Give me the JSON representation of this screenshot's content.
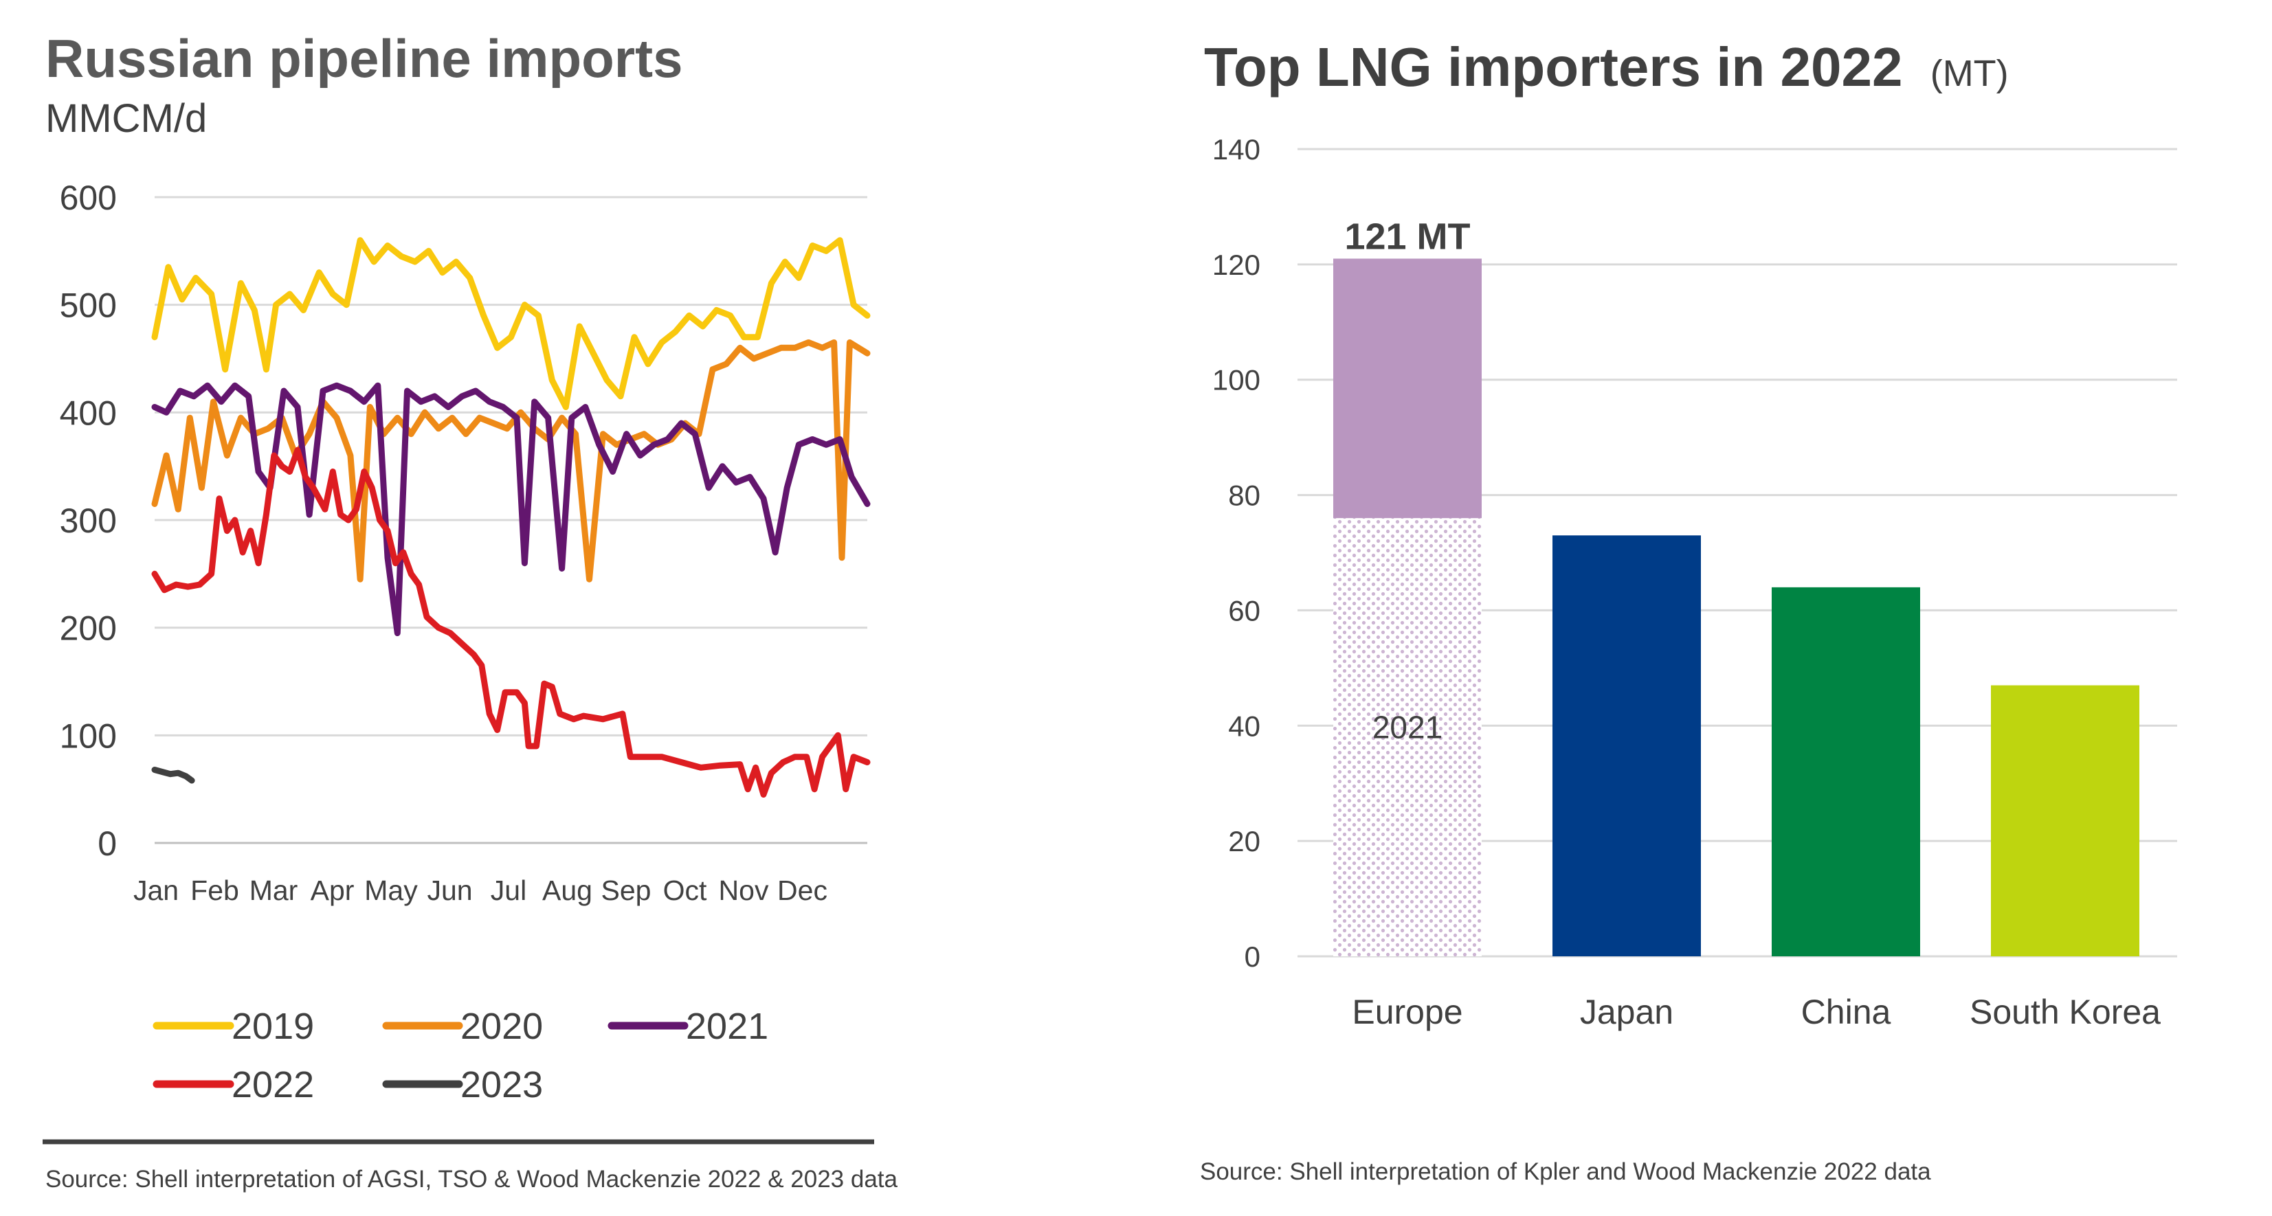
{
  "left_panel": {
    "title": "Russian pipeline imports",
    "unit": "MMCM/d",
    "source": "Source: Shell interpretation of AGSI, TSO & Wood Mackenzie 2022 & 2023 data"
  },
  "right_panel": {
    "title": "Top LNG importers in 2022",
    "unit": "(MT)",
    "source": "Source: Shell interpretation of Kpler and Wood Mackenzie 2022 data"
  },
  "colors": {
    "2019": "#f9c80e",
    "2020": "#ee8a17",
    "2021": "#63166e",
    "2022": "#dd1d21",
    "2023": "#404040",
    "europe_2022": "#b996c0",
    "europe_2021": "#e6d9e9",
    "japan": "#003c88",
    "china": "#008443",
    "south_korea": "#bed50f",
    "grid": "#d9d9d9",
    "text": "#404040",
    "divider": "#404040"
  },
  "chart_data": [
    {
      "type": "line",
      "title": "Russian pipeline imports",
      "ylabel": "MMCM/d",
      "xlabel": "",
      "x_tick_labels": [
        "Jan",
        "Feb",
        "Mar",
        "Apr",
        "May",
        "Jun",
        "Jul",
        "Aug",
        "Sep",
        "Oct",
        "Nov",
        "Dec"
      ],
      "x_unit": "day of year",
      "xlim": [
        1,
        365
      ],
      "ylim": [
        0,
        600
      ],
      "y_ticks": [
        "0",
        "100",
        "200",
        "300",
        "400",
        "500",
        "600"
      ],
      "grid": true,
      "legend": "bottom",
      "series": [
        {
          "name": "2019",
          "color": "#f9c80e",
          "points": [
            [
              1,
              470
            ],
            [
              8,
              535
            ],
            [
              15,
              505
            ],
            [
              22,
              525
            ],
            [
              30,
              510
            ],
            [
              37,
              440
            ],
            [
              45,
              520
            ],
            [
              52,
              495
            ],
            [
              58,
              440
            ],
            [
              63,
              500
            ],
            [
              70,
              510
            ],
            [
              77,
              495
            ],
            [
              85,
              530
            ],
            [
              92,
              510
            ],
            [
              99,
              500
            ],
            [
              106,
              560
            ],
            [
              113,
              540
            ],
            [
              120,
              555
            ],
            [
              127,
              545
            ],
            [
              134,
              540
            ],
            [
              141,
              550
            ],
            [
              148,
              530
            ],
            [
              155,
              540
            ],
            [
              162,
              525
            ],
            [
              169,
              490
            ],
            [
              176,
              460
            ],
            [
              183,
              470
            ],
            [
              190,
              500
            ],
            [
              197,
              490
            ],
            [
              204,
              430
            ],
            [
              211,
              405
            ],
            [
              218,
              480
            ],
            [
              225,
              455
            ],
            [
              232,
              430
            ],
            [
              239,
              415
            ],
            [
              246,
              470
            ],
            [
              253,
              445
            ],
            [
              260,
              465
            ],
            [
              267,
              475
            ],
            [
              274,
              490
            ],
            [
              281,
              480
            ],
            [
              288,
              495
            ],
            [
              295,
              490
            ],
            [
              302,
              470
            ],
            [
              309,
              470
            ],
            [
              316,
              520
            ],
            [
              323,
              540
            ],
            [
              330,
              525
            ],
            [
              337,
              555
            ],
            [
              344,
              550
            ],
            [
              351,
              560
            ],
            [
              358,
              500
            ],
            [
              365,
              490
            ]
          ]
        },
        {
          "name": "2020",
          "color": "#ee8a17",
          "points": [
            [
              1,
              315
            ],
            [
              7,
              360
            ],
            [
              13,
              310
            ],
            [
              19,
              395
            ],
            [
              25,
              330
            ],
            [
              31,
              410
            ],
            [
              38,
              360
            ],
            [
              45,
              395
            ],
            [
              52,
              380
            ],
            [
              59,
              385
            ],
            [
              66,
              395
            ],
            [
              73,
              360
            ],
            [
              80,
              380
            ],
            [
              87,
              410
            ],
            [
              94,
              395
            ],
            [
              101,
              360
            ],
            [
              106,
              245
            ],
            [
              111,
              405
            ],
            [
              118,
              380
            ],
            [
              125,
              395
            ],
            [
              132,
              380
            ],
            [
              139,
              400
            ],
            [
              146,
              385
            ],
            [
              153,
              395
            ],
            [
              160,
              380
            ],
            [
              167,
              395
            ],
            [
              174,
              390
            ],
            [
              181,
              385
            ],
            [
              188,
              400
            ],
            [
              195,
              385
            ],
            [
              202,
              375
            ],
            [
              209,
              395
            ],
            [
              216,
              380
            ],
            [
              223,
              245
            ],
            [
              230,
              380
            ],
            [
              237,
              370
            ],
            [
              244,
              375
            ],
            [
              251,
              380
            ],
            [
              258,
              370
            ],
            [
              265,
              375
            ],
            [
              272,
              390
            ],
            [
              279,
              380
            ],
            [
              286,
              440
            ],
            [
              293,
              445
            ],
            [
              300,
              460
            ],
            [
              307,
              450
            ],
            [
              314,
              455
            ],
            [
              321,
              460
            ],
            [
              328,
              460
            ],
            [
              335,
              465
            ],
            [
              342,
              460
            ],
            [
              348,
              465
            ],
            [
              352,
              265
            ],
            [
              356,
              465
            ],
            [
              365,
              455
            ]
          ]
        },
        {
          "name": "2021",
          "color": "#63166e",
          "points": [
            [
              1,
              405
            ],
            [
              7,
              400
            ],
            [
              14,
              420
            ],
            [
              21,
              415
            ],
            [
              28,
              425
            ],
            [
              35,
              410
            ],
            [
              42,
              425
            ],
            [
              49,
              415
            ],
            [
              54,
              345
            ],
            [
              60,
              330
            ],
            [
              67,
              420
            ],
            [
              74,
              405
            ],
            [
              80,
              305
            ],
            [
              87,
              420
            ],
            [
              94,
              425
            ],
            [
              101,
              420
            ],
            [
              108,
              410
            ],
            [
              115,
              425
            ],
            [
              120,
              265
            ],
            [
              125,
              195
            ],
            [
              130,
              420
            ],
            [
              137,
              410
            ],
            [
              144,
              415
            ],
            [
              151,
              405
            ],
            [
              158,
              415
            ],
            [
              165,
              420
            ],
            [
              172,
              410
            ],
            [
              179,
              405
            ],
            [
              186,
              395
            ],
            [
              190,
              260
            ],
            [
              195,
              410
            ],
            [
              202,
              395
            ],
            [
              209,
              255
            ],
            [
              214,
              395
            ],
            [
              221,
              405
            ],
            [
              228,
              370
            ],
            [
              235,
              345
            ],
            [
              242,
              380
            ],
            [
              249,
              360
            ],
            [
              256,
              370
            ],
            [
              263,
              375
            ],
            [
              270,
              390
            ],
            [
              277,
              380
            ],
            [
              284,
              330
            ],
            [
              291,
              350
            ],
            [
              298,
              335
            ],
            [
              305,
              340
            ],
            [
              312,
              320
            ],
            [
              318,
              270
            ],
            [
              324,
              330
            ],
            [
              330,
              370
            ],
            [
              337,
              375
            ],
            [
              344,
              370
            ],
            [
              351,
              375
            ],
            [
              357,
              340
            ],
            [
              365,
              315
            ]
          ]
        },
        {
          "name": "2022",
          "color": "#dd1d21",
          "points": [
            [
              1,
              250
            ],
            [
              6,
              235
            ],
            [
              12,
              240
            ],
            [
              18,
              238
            ],
            [
              24,
              240
            ],
            [
              30,
              250
            ],
            [
              34,
              320
            ],
            [
              38,
              290
            ],
            [
              42,
              300
            ],
            [
              46,
              270
            ],
            [
              50,
              290
            ],
            [
              54,
              260
            ],
            [
              58,
              305
            ],
            [
              62,
              360
            ],
            [
              66,
              350
            ],
            [
              70,
              345
            ],
            [
              74,
              365
            ],
            [
              78,
              340
            ],
            [
              82,
              330
            ],
            [
              88,
              310
            ],
            [
              92,
              345
            ],
            [
              96,
              305
            ],
            [
              100,
              300
            ],
            [
              104,
              310
            ],
            [
              108,
              345
            ],
            [
              112,
              330
            ],
            [
              116,
              300
            ],
            [
              120,
              290
            ],
            [
              124,
              260
            ],
            [
              128,
              270
            ],
            [
              132,
              250
            ],
            [
              136,
              240
            ],
            [
              140,
              210
            ],
            [
              146,
              200
            ],
            [
              152,
              195
            ],
            [
              158,
              185
            ],
            [
              164,
              175
            ],
            [
              168,
              165
            ],
            [
              172,
              120
            ],
            [
              176,
              105
            ],
            [
              180,
              140
            ],
            [
              186,
              140
            ],
            [
              190,
              130
            ],
            [
              192,
              90
            ],
            [
              196,
              90
            ],
            [
              200,
              148
            ],
            [
              204,
              145
            ],
            [
              208,
              120
            ],
            [
              215,
              115
            ],
            [
              220,
              118
            ],
            [
              230,
              115
            ],
            [
              240,
              120
            ],
            [
              244,
              80
            ],
            [
              250,
              80
            ],
            [
              260,
              80
            ],
            [
              270,
              75
            ],
            [
              280,
              70
            ],
            [
              290,
              72
            ],
            [
              300,
              73
            ],
            [
              304,
              50
            ],
            [
              308,
              70
            ],
            [
              312,
              45
            ],
            [
              316,
              65
            ],
            [
              322,
              75
            ],
            [
              328,
              80
            ],
            [
              334,
              80
            ],
            [
              338,
              50
            ],
            [
              342,
              80
            ],
            [
              346,
              90
            ],
            [
              350,
              100
            ],
            [
              354,
              50
            ],
            [
              358,
              80
            ],
            [
              365,
              75
            ]
          ]
        },
        {
          "name": "2023",
          "color": "#404040",
          "points": [
            [
              1,
              68
            ],
            [
              5,
              66
            ],
            [
              9,
              64
            ],
            [
              13,
              65
            ],
            [
              17,
              62
            ],
            [
              20,
              58
            ]
          ]
        }
      ]
    },
    {
      "type": "bar",
      "title": "Top LNG importers in 2022",
      "ylabel": "(MT)",
      "xlabel": "",
      "categories": [
        "Europe",
        "Japan",
        "China",
        "South Korea"
      ],
      "values": [
        121,
        73,
        64,
        47
      ],
      "stacked_2021_reference": {
        "category": "Europe",
        "label": "2021",
        "value": 76
      },
      "data_labels": {
        "Europe": "121 MT"
      },
      "ylim": [
        0,
        140
      ],
      "y_ticks": [
        "0",
        "20",
        "40",
        "60",
        "80",
        "100",
        "120",
        "140"
      ],
      "grid": true,
      "legend": "none"
    }
  ]
}
